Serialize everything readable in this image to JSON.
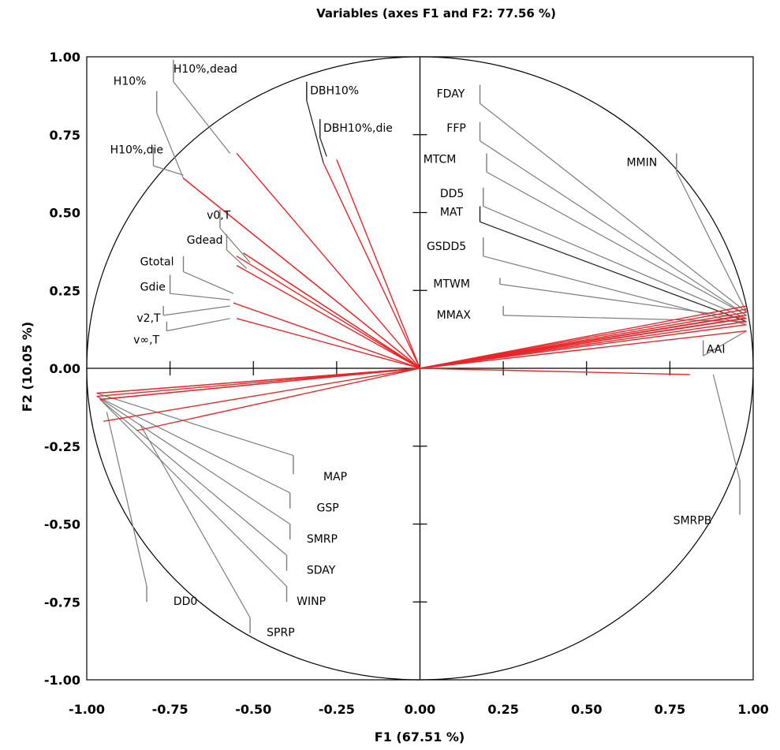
{
  "chart_data": {
    "type": "scatter",
    "title": "Variables (axes F1 and F2: 77.56 %)",
    "xlabel": "F1 (67.51 %)",
    "ylabel": "F2 (10.05 %)",
    "xlim": [
      -1.0,
      1.0
    ],
    "ylim": [
      -1.0,
      1.0
    ],
    "x_ticks": [
      "-1.00",
      "-0.75",
      "-0.50",
      "-0.25",
      "0.00",
      "0.25",
      "0.50",
      "0.75",
      "1.00"
    ],
    "y_ticks": [
      "1.00",
      "0.75",
      "0.50",
      "0.25",
      "0.00",
      "-0.25",
      "-0.50",
      "-0.75",
      "-1.00"
    ],
    "circle": true,
    "colors": {
      "vector": "#e8262a",
      "leader": "#7d7d7d",
      "leader_dark": "#1a1a1a",
      "axis": "#000000"
    },
    "variables": [
      {
        "name": "H10%",
        "x": -0.71,
        "y": 0.61
      },
      {
        "name": "H10%,dead",
        "x": -0.55,
        "y": 0.69
      },
      {
        "name": "H10%,die",
        "x": -0.71,
        "y": 0.61
      },
      {
        "name": "DBH10%",
        "x": -0.29,
        "y": 0.66
      },
      {
        "name": "DBH10%,die",
        "x": -0.25,
        "y": 0.67
      },
      {
        "name": "v0,T",
        "x": -0.53,
        "y": 0.37
      },
      {
        "name": "Gdead",
        "x": -0.53,
        "y": 0.37
      },
      {
        "name": "Gtotal",
        "x": -0.55,
        "y": 0.36
      },
      {
        "name": "Gdie",
        "x": -0.55,
        "y": 0.33
      },
      {
        "name": "v2,T",
        "x": -0.56,
        "y": 0.21
      },
      {
        "name": "v∞,T",
        "x": -0.55,
        "y": 0.16
      },
      {
        "name": "FDAY",
        "x": 0.98,
        "y": 0.17
      },
      {
        "name": "FFP",
        "x": 0.98,
        "y": 0.16
      },
      {
        "name": "MTCM",
        "x": 0.98,
        "y": 0.15
      },
      {
        "name": "DD5",
        "x": 0.98,
        "y": 0.19
      },
      {
        "name": "MAT",
        "x": 0.98,
        "y": 0.18
      },
      {
        "name": "GSDD5",
        "x": 0.98,
        "y": 0.14
      },
      {
        "name": "MTWM",
        "x": 0.97,
        "y": 0.17
      },
      {
        "name": "MMAX",
        "x": 0.97,
        "y": 0.16
      },
      {
        "name": "MMIN",
        "x": 0.98,
        "y": 0.2
      },
      {
        "name": "AAI",
        "x": 0.98,
        "y": 0.12
      },
      {
        "name": "SMRPB",
        "x": 0.81,
        "y": -0.02
      },
      {
        "name": "MAP",
        "x": -0.97,
        "y": -0.08
      },
      {
        "name": "GSP",
        "x": -0.97,
        "y": -0.09
      },
      {
        "name": "SMRP",
        "x": -0.97,
        "y": -0.08
      },
      {
        "name": "SDAY",
        "x": -0.96,
        "y": -0.1
      },
      {
        "name": "WINP",
        "x": -0.96,
        "y": -0.1
      },
      {
        "name": "DD0",
        "x": -0.95,
        "y": -0.17
      },
      {
        "name": "SPRP",
        "x": -0.85,
        "y": -0.2
      }
    ],
    "labels": [
      {
        "name": "H10%",
        "tx": -0.92,
        "ty": 0.91,
        "ax": -0.79,
        "ay": 0.89,
        "lx": -0.79,
        "ly": 0.82,
        "ex": -0.71,
        "ey": 0.61,
        "dark": false
      },
      {
        "name": "H10%,dead",
        "tx": -0.74,
        "ty": 0.95,
        "ax": -0.74,
        "ay": 0.99,
        "lx": -0.74,
        "ly": 0.92,
        "ex": -0.57,
        "ey": 0.69,
        "dark": false
      },
      {
        "name": "H10%,die",
        "tx": -0.93,
        "ty": 0.69,
        "ax": -0.8,
        "ay": 0.71,
        "lx": -0.8,
        "ly": 0.65,
        "ex": -0.71,
        "ey": 0.62,
        "dark": false
      },
      {
        "name": "DBH10%",
        "tx": -0.33,
        "ty": 0.88,
        "ax": -0.34,
        "ay": 0.92,
        "lx": -0.34,
        "ly": 0.86,
        "ex": -0.29,
        "ey": 0.66,
        "dark": true
      },
      {
        "name": "DBH10%,die",
        "tx": -0.29,
        "ty": 0.76,
        "ax": -0.3,
        "ay": 0.8,
        "lx": -0.3,
        "ly": 0.74,
        "ex": -0.28,
        "ey": 0.68,
        "dark": true
      },
      {
        "name": "v0,T",
        "tx": -0.64,
        "ty": 0.48,
        "ax": -0.6,
        "ay": 0.51,
        "lx": -0.6,
        "ly": 0.45,
        "ex": -0.51,
        "ey": 0.34,
        "dark": false
      },
      {
        "name": "Gdead",
        "tx": -0.7,
        "ty": 0.4,
        "ax": -0.58,
        "ay": 0.43,
        "lx": -0.58,
        "ly": 0.38,
        "ex": -0.52,
        "ey": 0.32,
        "dark": false
      },
      {
        "name": "Gtotal",
        "tx": -0.84,
        "ty": 0.33,
        "ax": -0.71,
        "ay": 0.36,
        "lx": -0.71,
        "ly": 0.31,
        "ex": -0.56,
        "ey": 0.24,
        "dark": false
      },
      {
        "name": "Gdie",
        "tx": -0.84,
        "ty": 0.25,
        "ax": -0.75,
        "ay": 0.3,
        "lx": -0.75,
        "ly": 0.24,
        "ex": -0.57,
        "ey": 0.22,
        "dark": false
      },
      {
        "name": "v2,T",
        "tx": -0.85,
        "ty": 0.15,
        "ax": -0.77,
        "ay": 0.2,
        "lx": -0.77,
        "ly": 0.17,
        "ex": -0.57,
        "ey": 0.2,
        "dark": false
      },
      {
        "name": "v∞,T",
        "tx": -0.86,
        "ty": 0.08,
        "ax": -0.76,
        "ay": 0.15,
        "lx": -0.76,
        "ly": 0.12,
        "ex": -0.57,
        "ey": 0.16,
        "dark": false
      },
      {
        "name": "FDAY",
        "tx": 0.05,
        "ty": 0.87,
        "ax": 0.18,
        "ay": 0.91,
        "lx": 0.18,
        "ly": 0.85,
        "ex": 0.98,
        "ey": 0.18,
        "dark": false
      },
      {
        "name": "FFP",
        "tx": 0.08,
        "ty": 0.76,
        "ax": 0.18,
        "ay": 0.79,
        "lx": 0.18,
        "ly": 0.73,
        "ex": 0.98,
        "ey": 0.17,
        "dark": false
      },
      {
        "name": "MTCM",
        "tx": 0.01,
        "ty": 0.66,
        "ax": 0.2,
        "ay": 0.69,
        "lx": 0.2,
        "ly": 0.63,
        "ex": 0.98,
        "ey": 0.17,
        "dark": false
      },
      {
        "name": "DD5",
        "tx": 0.06,
        "ty": 0.55,
        "ax": 0.19,
        "ay": 0.58,
        "lx": 0.19,
        "ly": 0.52,
        "ex": 0.98,
        "ey": 0.16,
        "dark": false
      },
      {
        "name": "MAT",
        "tx": 0.06,
        "ty": 0.49,
        "ax": 0.18,
        "ay": 0.52,
        "lx": 0.18,
        "ly": 0.47,
        "ex": 0.98,
        "ey": 0.15,
        "dark": true
      },
      {
        "name": "GSDD5",
        "tx": 0.02,
        "ty": 0.38,
        "ax": 0.19,
        "ay": 0.42,
        "lx": 0.19,
        "ly": 0.36,
        "ex": 0.98,
        "ey": 0.14,
        "dark": false
      },
      {
        "name": "MTWM",
        "tx": 0.04,
        "ty": 0.26,
        "ax": 0.24,
        "ay": 0.29,
        "lx": 0.24,
        "ly": 0.27,
        "ex": 0.98,
        "ey": 0.16,
        "dark": false
      },
      {
        "name": "MMAX",
        "tx": 0.05,
        "ty": 0.16,
        "ax": 0.25,
        "ay": 0.2,
        "lx": 0.25,
        "ly": 0.17,
        "ex": 0.98,
        "ey": 0.15,
        "dark": false
      },
      {
        "name": "MMIN",
        "tx": 0.62,
        "ty": 0.65,
        "ax": 0.77,
        "ay": 0.69,
        "lx": 0.77,
        "ly": 0.63,
        "ex": 0.98,
        "ey": 0.18,
        "dark": false
      },
      {
        "name": "AAI",
        "tx": 0.86,
        "ty": 0.05,
        "ax": 0.85,
        "ay": 0.09,
        "lx": 0.85,
        "ly": 0.04,
        "ex": 0.98,
        "ey": 0.12,
        "dark": false
      },
      {
        "name": "SMRPB",
        "tx": 0.76,
        "ty": -0.5,
        "ax": 0.96,
        "ay": -0.47,
        "lx": 0.96,
        "ly": -0.36,
        "ex": 0.88,
        "ey": -0.02,
        "dark": false
      },
      {
        "name": "MAP",
        "tx": -0.29,
        "ty": -0.36,
        "ax": -0.38,
        "ay": -0.34,
        "lx": -0.38,
        "ly": -0.28,
        "ex": -0.97,
        "ey": -0.08,
        "dark": false
      },
      {
        "name": "GSP",
        "tx": -0.31,
        "ty": -0.46,
        "ax": -0.39,
        "ay": -0.45,
        "lx": -0.39,
        "ly": -0.4,
        "ex": -0.97,
        "ey": -0.09,
        "dark": false
      },
      {
        "name": "SMRP",
        "tx": -0.34,
        "ty": -0.56,
        "ax": -0.39,
        "ay": -0.55,
        "lx": -0.39,
        "ly": -0.5,
        "ex": -0.97,
        "ey": -0.09,
        "dark": false
      },
      {
        "name": "SDAY",
        "tx": -0.34,
        "ty": -0.66,
        "ax": -0.4,
        "ay": -0.65,
        "lx": -0.4,
        "ly": -0.6,
        "ex": -0.96,
        "ey": -0.1,
        "dark": false
      },
      {
        "name": "WINP",
        "tx": -0.37,
        "ty": -0.76,
        "ax": -0.4,
        "ay": -0.75,
        "lx": -0.4,
        "ly": -0.7,
        "ex": -0.96,
        "ey": -0.1,
        "dark": false
      },
      {
        "name": "DD0",
        "tx": -0.74,
        "ty": -0.76,
        "ax": -0.82,
        "ay": -0.75,
        "lx": -0.82,
        "ly": -0.7,
        "ex": -0.94,
        "ey": -0.14,
        "dark": false
      },
      {
        "name": "SPRP",
        "tx": -0.46,
        "ty": -0.86,
        "ax": -0.51,
        "ay": -0.85,
        "lx": -0.51,
        "ly": -0.8,
        "ex": -0.84,
        "ey": -0.18,
        "dark": false
      }
    ]
  }
}
